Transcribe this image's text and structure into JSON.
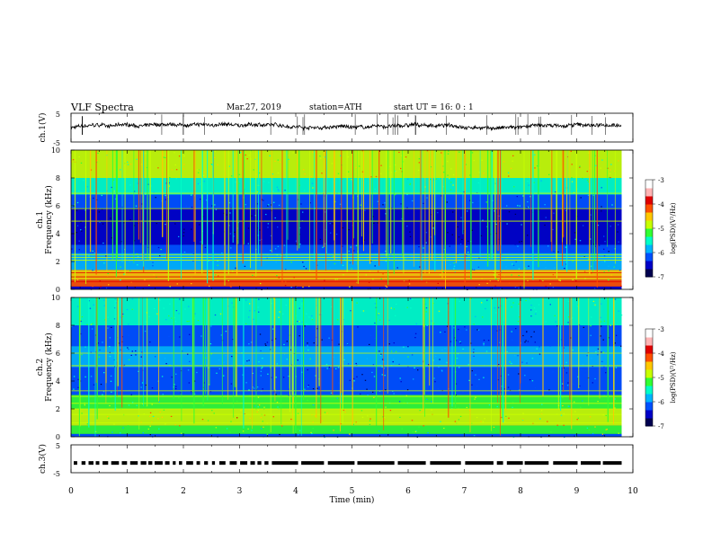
{
  "header": {
    "title": "VLF  Spectra",
    "date": "Mar.27, 2019",
    "station": "station=ATH",
    "start_ut": "start  UT  =    16: 0   : 1"
  },
  "chart_data": [
    {
      "type": "line",
      "panel": "ch1-waveform",
      "ylabel": "ch.1(V)",
      "ylim": [
        -5,
        5
      ],
      "y_ticks": [
        "5",
        "-5"
      ],
      "x_range_min": [
        0,
        9.8
      ]
    },
    {
      "type": "heatmap",
      "panel": "ch1-spectrogram",
      "ylabel": "ch.1",
      "ylabel2": "Frequency  (kHz)",
      "ylim": [
        0,
        10
      ],
      "y_ticks": [
        "0",
        "2",
        "4",
        "6",
        "8",
        "10"
      ],
      "x_range_min": [
        0,
        9.8
      ],
      "colorbar": {
        "label": "log(PSD)(V²/Hz)",
        "range": [
          -7,
          -3
        ],
        "ticks": [
          "-3",
          "-4",
          "-5",
          "-6",
          "-7"
        ],
        "colors": [
          "#000050",
          "#0000c8",
          "#0050ff",
          "#00b4ff",
          "#00ffc8",
          "#32ff32",
          "#c8ff00",
          "#ffc800",
          "#ff5000",
          "#e00000",
          "#ffb4b4",
          "#ffffff"
        ]
      }
    },
    {
      "type": "heatmap",
      "panel": "ch2-spectrogram",
      "ylabel": "ch.2",
      "ylabel2": "Frequency  (kHz)",
      "ylim": [
        0,
        10
      ],
      "y_ticks": [
        "0",
        "2",
        "4",
        "6",
        "8",
        "10"
      ],
      "x_range_min": [
        0,
        9.8
      ],
      "colorbar": {
        "label": "log(PSD)(V²/Hz)",
        "range": [
          -7,
          -3
        ],
        "ticks": [
          "-3",
          "-4",
          "-5",
          "-6",
          "-7"
        ],
        "colors": [
          "#000050",
          "#0000c8",
          "#0050ff",
          "#00b4ff",
          "#00ffc8",
          "#32ff32",
          "#c8ff00",
          "#ffc800",
          "#ff5000",
          "#e00000",
          "#ffb4b4",
          "#ffffff"
        ]
      }
    },
    {
      "type": "line",
      "panel": "ch3-signal",
      "ylabel": "ch.3(V)",
      "ylim": [
        -5,
        5
      ],
      "y_ticks": [
        "5",
        "-5"
      ],
      "x_range_min": [
        0,
        9.8
      ],
      "level_v": -1.5
    }
  ],
  "x_axis": {
    "label": "Time  (min)",
    "range": [
      0,
      10
    ],
    "ticks": [
      "0",
      "1",
      "2",
      "3",
      "4",
      "5",
      "6",
      "7",
      "8",
      "9",
      "10"
    ]
  }
}
